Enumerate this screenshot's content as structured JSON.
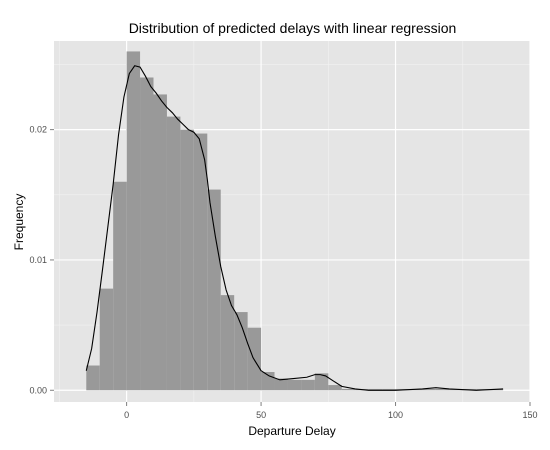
{
  "chart_data": {
    "type": "bar",
    "title": "Distribution of predicted delays with linear regression",
    "xlabel": "Departure Delay",
    "ylabel": "Frequency",
    "xlim": [
      -27,
      150
    ],
    "ylim": [
      -0.0009,
      0.0268
    ],
    "x_ticks": [
      0,
      50,
      100,
      150
    ],
    "x_tick_labels": [
      "0",
      "50",
      "100",
      "150"
    ],
    "y_ticks": [
      0.0,
      0.01,
      0.02
    ],
    "y_tick_labels": [
      "0.00",
      "0.01",
      "0.02"
    ],
    "grid": true,
    "bin_width": 5,
    "bins": [
      {
        "x0": -15,
        "value": 0.0019
      },
      {
        "x0": -10,
        "value": 0.0078
      },
      {
        "x0": -5,
        "value": 0.016
      },
      {
        "x0": 0,
        "value": 0.026
      },
      {
        "x0": 5,
        "value": 0.024
      },
      {
        "x0": 10,
        "value": 0.0227
      },
      {
        "x0": 15,
        "value": 0.021
      },
      {
        "x0": 20,
        "value": 0.02
      },
      {
        "x0": 25,
        "value": 0.0197
      },
      {
        "x0": 30,
        "value": 0.0154
      },
      {
        "x0": 35,
        "value": 0.0073
      },
      {
        "x0": 40,
        "value": 0.006
      },
      {
        "x0": 45,
        "value": 0.0048
      },
      {
        "x0": 50,
        "value": 0.0014
      },
      {
        "x0": 55,
        "value": 0.0009
      },
      {
        "x0": 60,
        "value": 0.0008
      },
      {
        "x0": 65,
        "value": 0.0008
      },
      {
        "x0": 70,
        "value": 0.0013
      },
      {
        "x0": 75,
        "value": 0.0004
      },
      {
        "x0": 80,
        "value": 0.0001
      },
      {
        "x0": 85,
        "value": 0.0001
      },
      {
        "x0": 90,
        "value": 0.0001
      },
      {
        "x0": 95,
        "value": 0.0001
      },
      {
        "x0": 100,
        "value": 0.0001
      },
      {
        "x0": 105,
        "value": 0.0001
      },
      {
        "x0": 110,
        "value": 0.0001
      },
      {
        "x0": 115,
        "value": 0.0001
      },
      {
        "x0": 120,
        "value": 0.0001
      },
      {
        "x0": 125,
        "value": 0.0001
      },
      {
        "x0": 130,
        "value": 0.0001
      },
      {
        "x0": 135,
        "value": 0.0001
      }
    ],
    "density_curve": {
      "x": [
        -15,
        -13,
        -11,
        -9,
        -7,
        -5,
        -3,
        -1,
        1,
        3,
        5,
        7,
        9,
        11,
        13,
        15,
        17,
        19,
        21,
        23,
        25,
        27,
        29,
        30,
        31,
        33,
        35,
        37,
        39,
        41,
        43,
        45,
        47,
        50,
        53,
        57,
        62,
        67,
        70,
        72,
        74,
        77,
        80,
        85,
        90,
        100,
        110,
        115,
        120,
        130,
        140
      ],
      "y": [
        0.0015,
        0.0032,
        0.006,
        0.0092,
        0.0125,
        0.0158,
        0.0196,
        0.0225,
        0.0243,
        0.0249,
        0.0248,
        0.0241,
        0.0233,
        0.0228,
        0.0222,
        0.0217,
        0.0213,
        0.0208,
        0.0204,
        0.02,
        0.0198,
        0.0193,
        0.0177,
        0.0162,
        0.0144,
        0.0118,
        0.0095,
        0.0077,
        0.0065,
        0.0058,
        0.0048,
        0.0036,
        0.0025,
        0.0015,
        0.0011,
        0.0008,
        0.0009,
        0.001,
        0.0012,
        0.0012,
        0.0011,
        0.0007,
        0.0003,
        0.0001,
        0.0,
        0.0,
        0.0001,
        0.0002,
        0.0001,
        0.0,
        0.0001
      ]
    },
    "colors": {
      "panel": "#e5e5e5",
      "grid_major": "#ffffff",
      "grid_minor": "#f2f2f2",
      "bar": "#999999",
      "curve": "#000000",
      "tick_text": "#4d4d4d"
    }
  }
}
